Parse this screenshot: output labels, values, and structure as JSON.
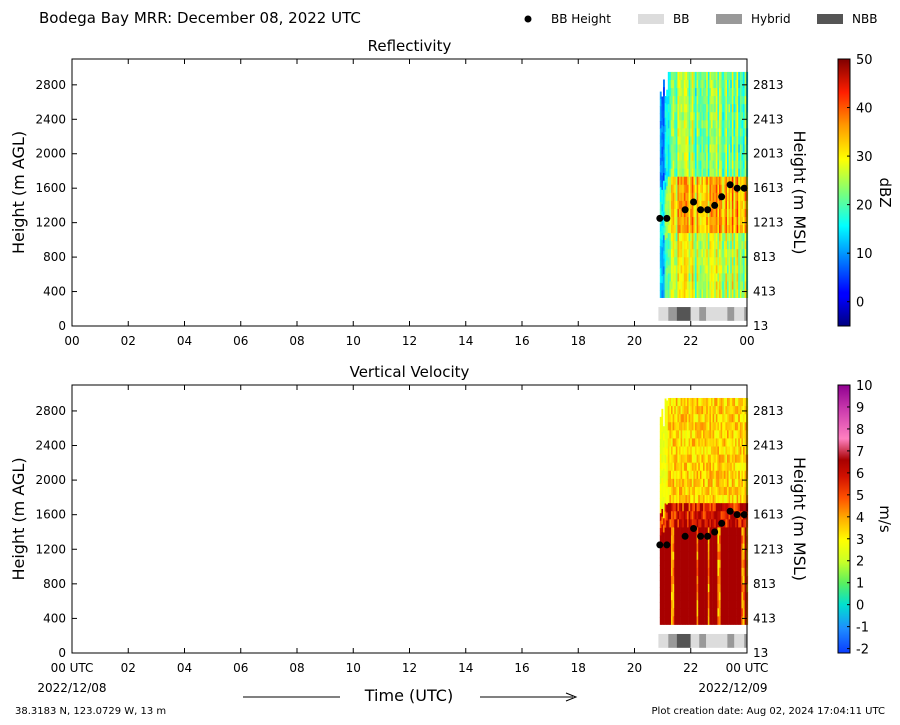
{
  "header": {
    "title": "Bodega Bay MRR:  December 08, 2022 UTC",
    "legend": [
      {
        "label": "BB Height",
        "kind": "dot",
        "color": "#000000"
      },
      {
        "label": "BB",
        "kind": "box",
        "color": "#dcdcdc"
      },
      {
        "label": "Hybrid",
        "kind": "box",
        "color": "#999999"
      },
      {
        "label": "NBB",
        "kind": "box",
        "color": "#555555"
      }
    ]
  },
  "footer": {
    "location": "38.3183 N, 123.0729 W, 13 m",
    "creation": "Plot creation date: Aug 02, 2024 17:04:11 UTC",
    "xlabel": "Time (UTC)",
    "start_date": "2022/12/08",
    "end_date": "2022/12/09"
  },
  "chart_data": [
    {
      "type": "heatmap",
      "title": "Reflectivity",
      "ylabel": "Height (m AGL)",
      "ylabel_right": "Height (m MSL)",
      "x_ticks": [
        "00",
        "02",
        "04",
        "06",
        "08",
        "10",
        "12",
        "14",
        "16",
        "18",
        "20",
        "22",
        "00"
      ],
      "xlim_hours": [
        0,
        24
      ],
      "y_ticks": [
        0,
        400,
        800,
        1200,
        1600,
        2000,
        2400,
        2800
      ],
      "ylim": [
        0,
        3100
      ],
      "y_ticks_right": [
        "13",
        "413",
        "813",
        "1213",
        "1613",
        "2013",
        "2413",
        "2813"
      ],
      "data_start_hour": 20.9,
      "colorbar": {
        "label": "dBZ",
        "min": -5,
        "max": 50,
        "ticks": [
          0,
          10,
          20,
          30,
          40,
          50
        ],
        "ticklabels": [
          "0",
          "10",
          "20",
          "30",
          "40",
          "50"
        ]
      },
      "bb_height": [
        {
          "t": 20.9,
          "h": 1250
        },
        {
          "t": 21.15,
          "h": 1250
        },
        {
          "t": 21.8,
          "h": 1350
        },
        {
          "t": 22.1,
          "h": 1440
        },
        {
          "t": 22.35,
          "h": 1350
        },
        {
          "t": 22.6,
          "h": 1350
        },
        {
          "t": 22.85,
          "h": 1400
        },
        {
          "t": 23.1,
          "h": 1500
        },
        {
          "t": 23.4,
          "h": 1640
        },
        {
          "t": 23.65,
          "h": 1600
        },
        {
          "t": 23.9,
          "h": 1600
        }
      ],
      "bb_class": [
        {
          "t0": 20.85,
          "t1": 21.2,
          "class": "BB"
        },
        {
          "t0": 21.2,
          "t1": 21.5,
          "class": "Hybrid"
        },
        {
          "t0": 21.5,
          "t1": 22.0,
          "class": "NBB"
        },
        {
          "t0": 22.0,
          "t1": 22.3,
          "class": "BB"
        },
        {
          "t0": 22.3,
          "t1": 22.55,
          "class": "Hybrid"
        },
        {
          "t0": 22.55,
          "t1": 23.3,
          "class": "BB"
        },
        {
          "t0": 23.3,
          "t1": 23.55,
          "class": "Hybrid"
        },
        {
          "t0": 23.55,
          "t1": 23.9,
          "class": "BB"
        },
        {
          "t0": 23.9,
          "t1": 24.0,
          "class": "Hybrid"
        }
      ]
    },
    {
      "type": "heatmap",
      "title": "Vertical Velocity",
      "ylabel": "Height (m AGL)",
      "ylabel_right": "Height (m MSL)",
      "x_ticks": [
        "00 UTC",
        "02",
        "04",
        "06",
        "08",
        "10",
        "12",
        "14",
        "16",
        "18",
        "20",
        "22",
        "00 UTC"
      ],
      "xlim_hours": [
        0,
        24
      ],
      "y_ticks": [
        0,
        400,
        800,
        1200,
        1600,
        2000,
        2400,
        2800
      ],
      "ylim": [
        0,
        3100
      ],
      "y_ticks_right": [
        "13",
        "413",
        "813",
        "1213",
        "1613",
        "2013",
        "2413",
        "2813"
      ],
      "data_start_hour": 20.9,
      "colorbar": {
        "label": "m/s",
        "min": -2.2,
        "max": 10,
        "ticks": [
          -2,
          -1,
          0,
          1,
          2,
          3,
          4,
          5,
          6,
          7,
          8,
          9,
          10
        ],
        "ticklabels": [
          "-2",
          "-1",
          "0",
          "1",
          "2",
          "3",
          "4",
          "5",
          "6",
          "7",
          "8",
          "9",
          "10"
        ]
      },
      "bb_height": [
        {
          "t": 20.9,
          "h": 1250
        },
        {
          "t": 21.15,
          "h": 1250
        },
        {
          "t": 21.8,
          "h": 1350
        },
        {
          "t": 22.1,
          "h": 1440
        },
        {
          "t": 22.35,
          "h": 1350
        },
        {
          "t": 22.6,
          "h": 1350
        },
        {
          "t": 22.85,
          "h": 1400
        },
        {
          "t": 23.1,
          "h": 1500
        },
        {
          "t": 23.4,
          "h": 1640
        },
        {
          "t": 23.65,
          "h": 1600
        },
        {
          "t": 23.9,
          "h": 1600
        }
      ],
      "bb_class": [
        {
          "t0": 20.85,
          "t1": 21.2,
          "class": "BB"
        },
        {
          "t0": 21.2,
          "t1": 21.5,
          "class": "Hybrid"
        },
        {
          "t0": 21.5,
          "t1": 22.0,
          "class": "NBB"
        },
        {
          "t0": 22.0,
          "t1": 22.3,
          "class": "BB"
        },
        {
          "t0": 22.3,
          "t1": 22.55,
          "class": "Hybrid"
        },
        {
          "t0": 22.55,
          "t1": 23.3,
          "class": "BB"
        },
        {
          "t0": 23.3,
          "t1": 23.55,
          "class": "Hybrid"
        },
        {
          "t0": 23.55,
          "t1": 23.9,
          "class": "BB"
        },
        {
          "t0": 23.9,
          "t1": 24.0,
          "class": "Hybrid"
        }
      ]
    }
  ]
}
